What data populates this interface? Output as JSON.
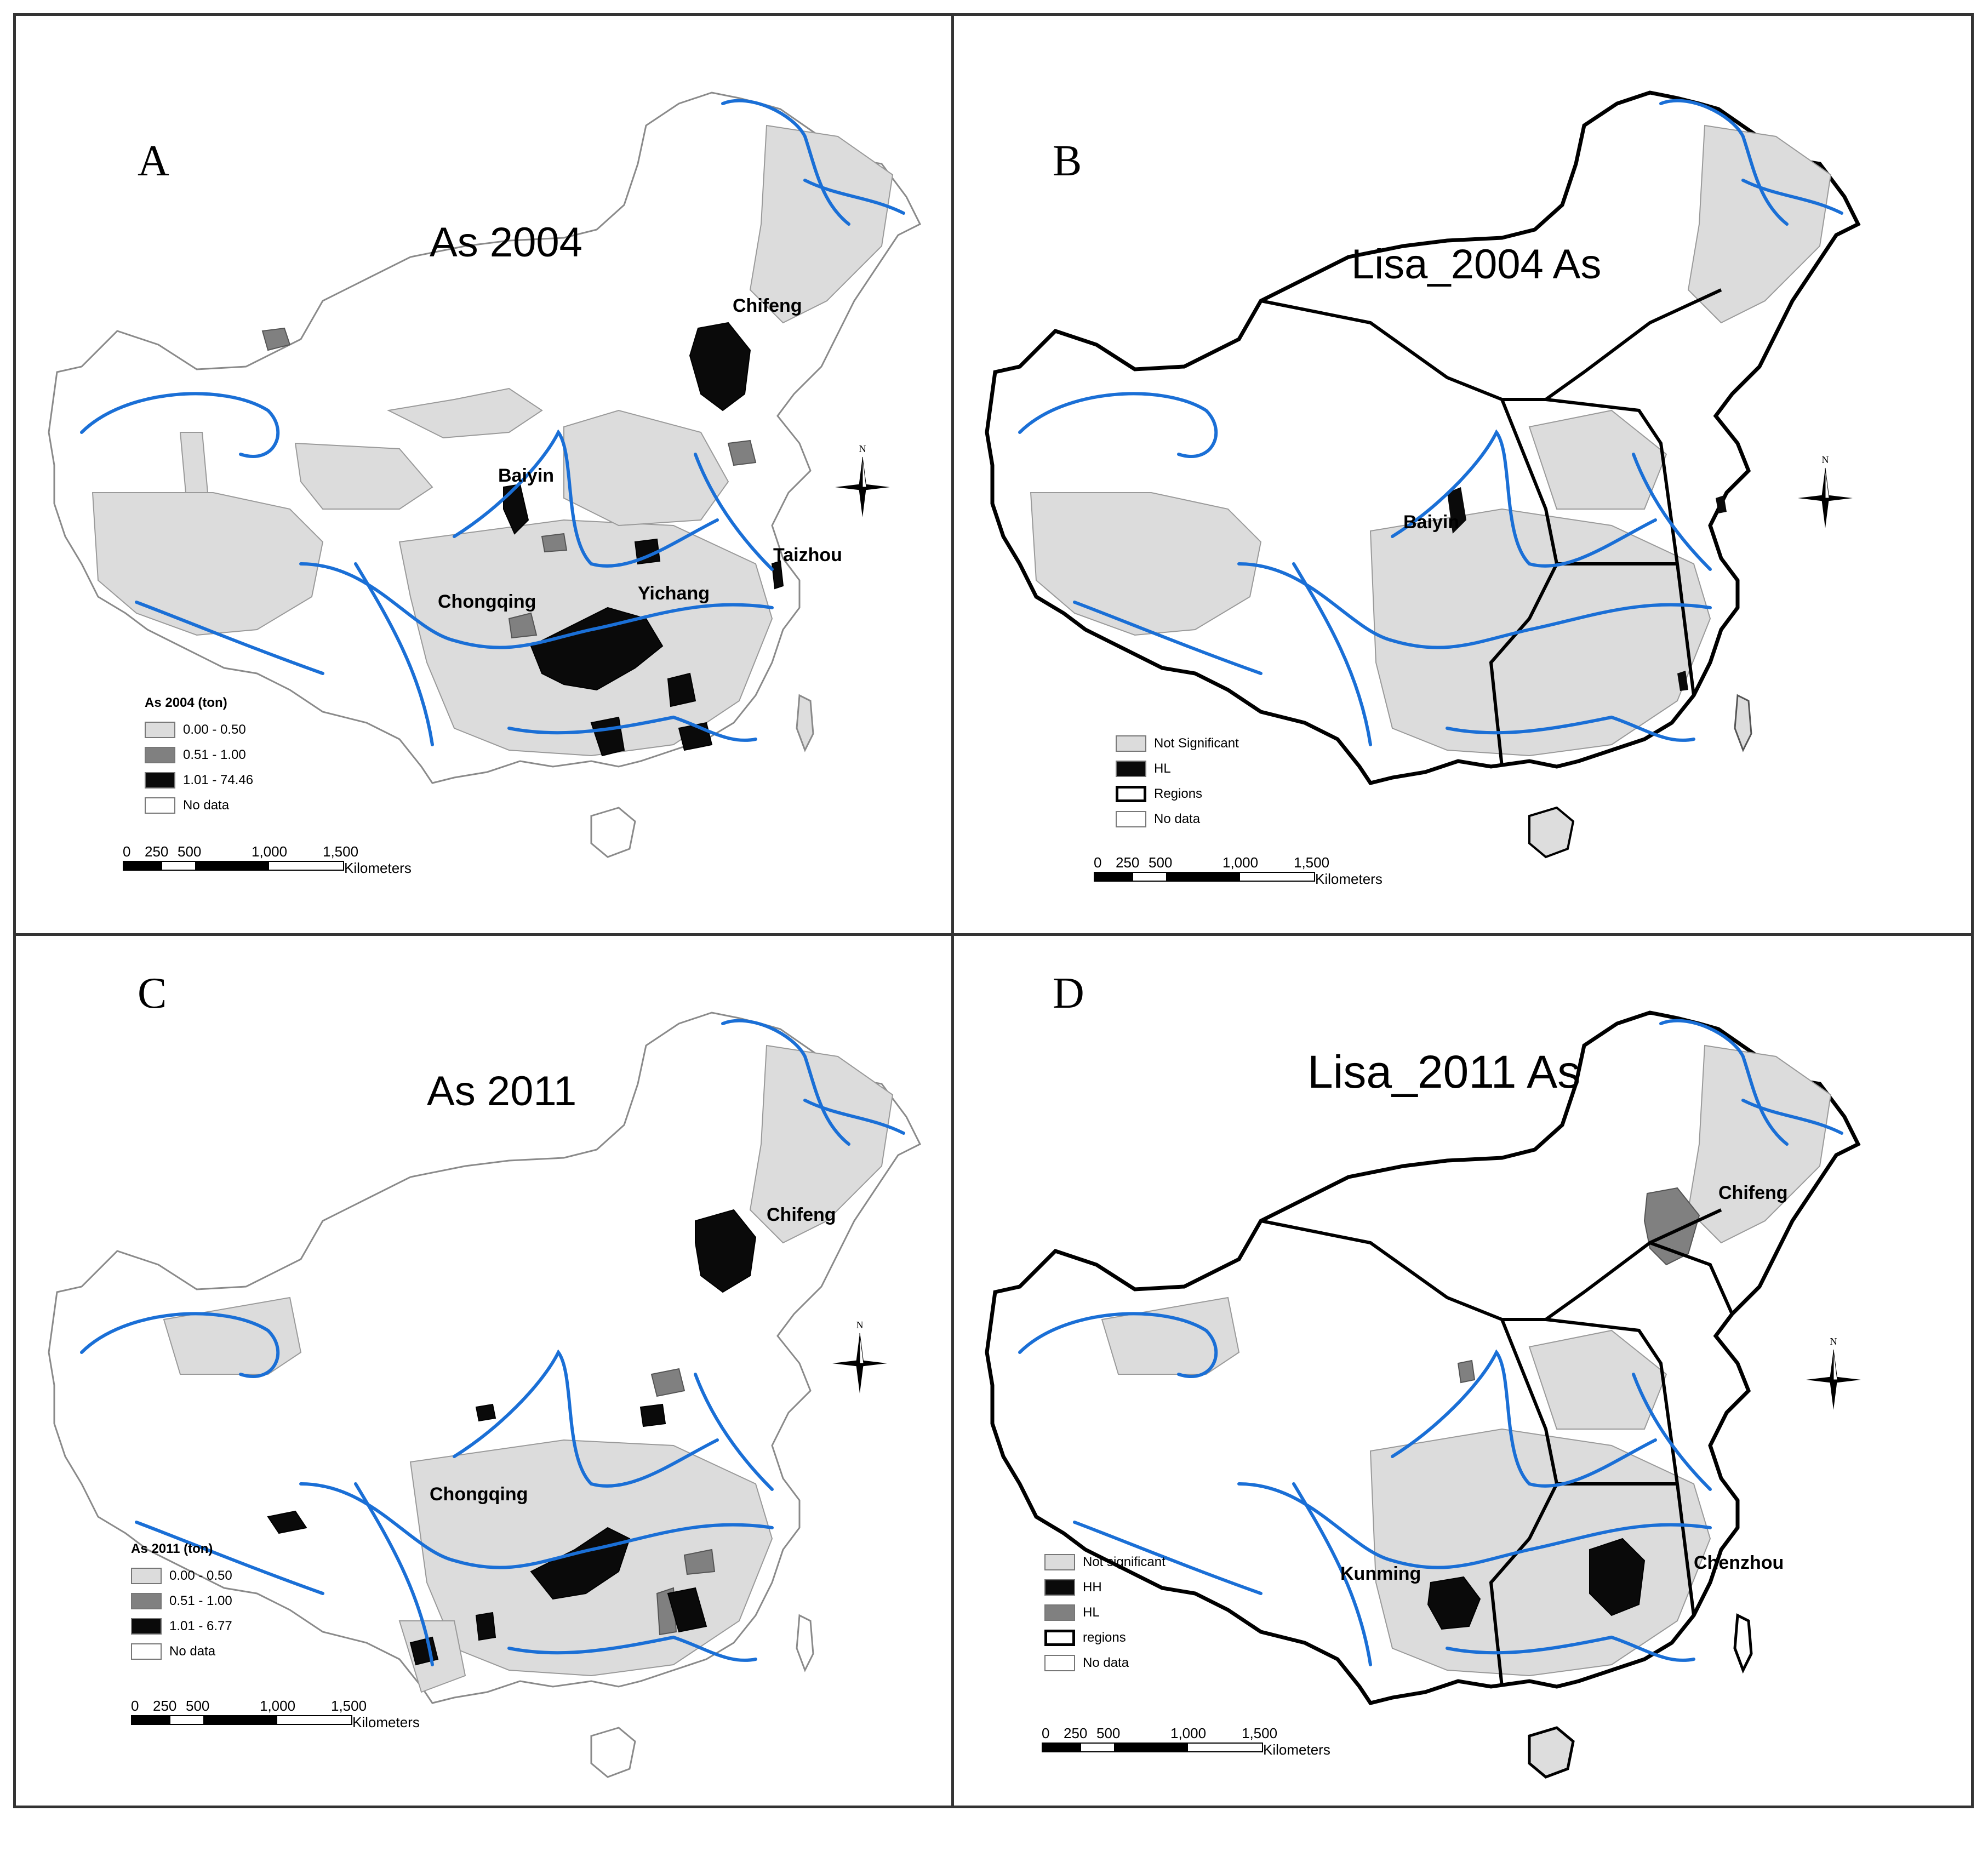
{
  "panels": [
    {
      "letter": "A",
      "title": "As 2004",
      "cities": [
        "Chifeng",
        "Baiyin",
        "Taizhou",
        "Chongqing",
        "Yichang"
      ],
      "legend": {
        "heading": "As 2004 (ton)",
        "items": [
          "0.00 - 0.50",
          "0.51 - 1.00",
          "1.01 - 74.46",
          "No data"
        ]
      }
    },
    {
      "letter": "B",
      "title": "Lisa_2004 As",
      "cities": [
        "Baiyin"
      ],
      "legend": {
        "heading": "",
        "items": [
          "Not Significant",
          "HL",
          "Regions",
          "No data"
        ]
      }
    },
    {
      "letter": "C",
      "title": "As 2011",
      "cities": [
        "Chifeng",
        "Chongqing"
      ],
      "legend": {
        "heading": "As 2011 (ton)",
        "items": [
          "0.00 - 0.50",
          "0.51 - 1.00",
          "1.01 - 6.77",
          "No data"
        ]
      }
    },
    {
      "letter": "D",
      "title": "Lisa_2011 As",
      "cities": [
        "Chifeng",
        "Kunming",
        "Chenzhou"
      ],
      "legend": {
        "heading": "",
        "items": [
          "Not significant",
          "HH",
          "HL",
          "regions",
          "No data"
        ]
      }
    }
  ],
  "scale_bar": {
    "ticks": [
      "0",
      "250",
      "500",
      "1,000",
      "1,500"
    ],
    "unit": "Kilometers"
  },
  "north_label": "N",
  "colors": {
    "low": "#dcdcdc",
    "mid": "#808080",
    "high": "#0a0a0a",
    "no_data": "#ffffff",
    "river": "#1a6fd6",
    "boundary": "#8a8a8a"
  }
}
